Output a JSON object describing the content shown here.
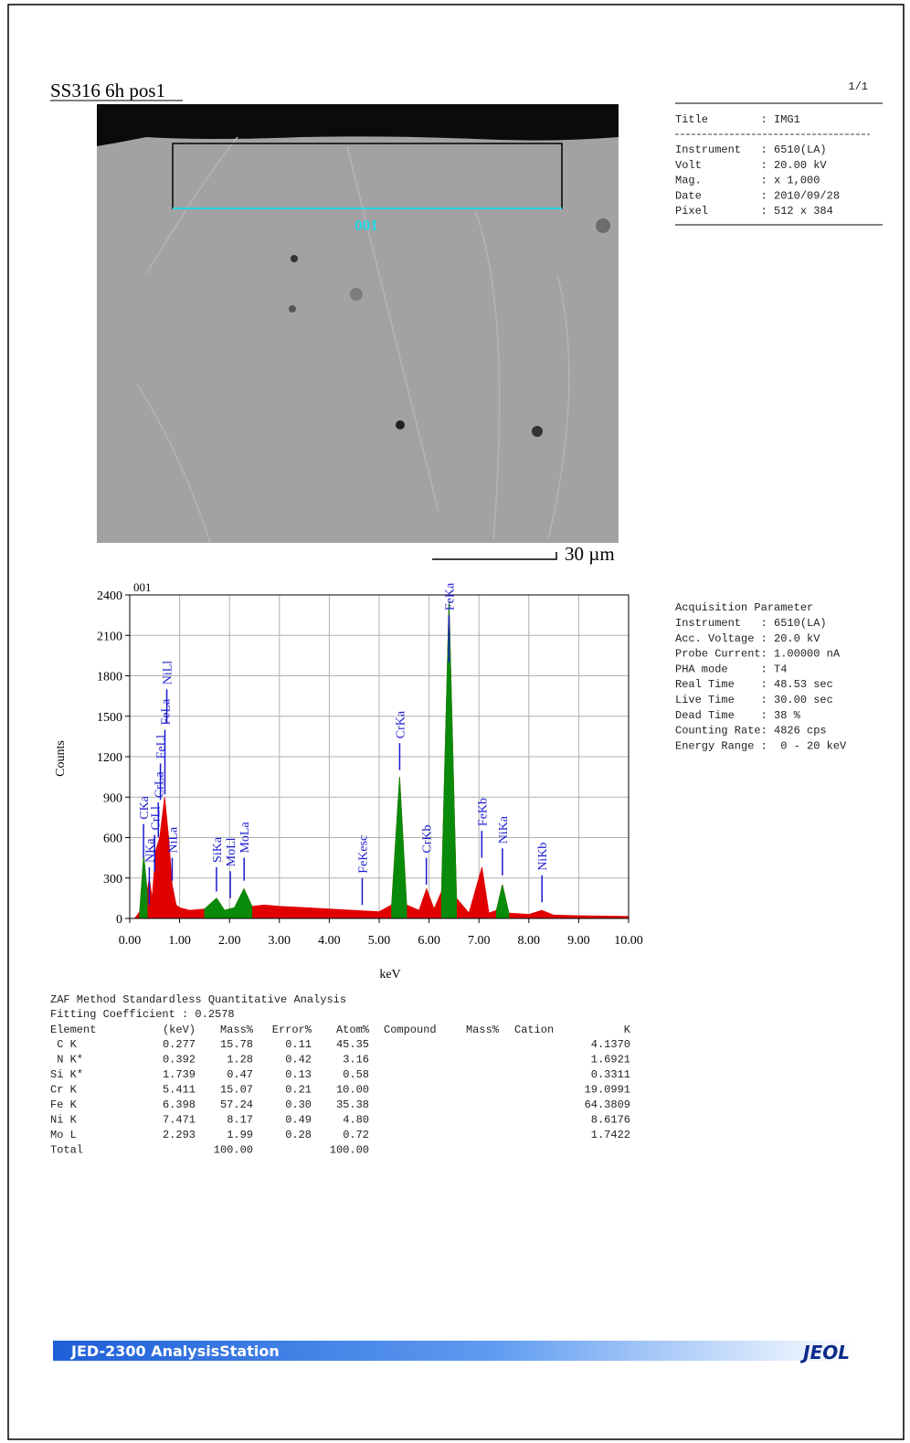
{
  "header": {
    "title": "SS316 6h pos1",
    "page": "1/1"
  },
  "image_info": {
    "title_line": "Title        : IMG1",
    "lines": [
      "Instrument   : 6510(LA)",
      "Volt         : 20.00 kV",
      "Mag.         : x 1,000",
      "Date         : 2010/09/28",
      "Pixel        : 512 x 384"
    ]
  },
  "sem_image": {
    "region_label": "001",
    "scale_bar": "30 µm"
  },
  "chart_data": {
    "type": "area",
    "annotation": "001",
    "xlabel": "keV",
    "ylabel": "Counts",
    "xlim": [
      0,
      10
    ],
    "ylim": [
      0,
      2400
    ],
    "grid": true,
    "xticks": [
      {
        "value": 0,
        "label": "0.00"
      },
      {
        "value": 1,
        "label": "1.00"
      },
      {
        "value": 2,
        "label": "2.00"
      },
      {
        "value": 3,
        "label": "3.00"
      },
      {
        "value": 4,
        "label": "4.00"
      },
      {
        "value": 5,
        "label": "5.00"
      },
      {
        "value": 6,
        "label": "6.00"
      },
      {
        "value": 7,
        "label": "7.00"
      },
      {
        "value": 8,
        "label": "8.00"
      },
      {
        "value": 9,
        "label": "9.00"
      },
      {
        "value": 10,
        "label": "10.00"
      }
    ],
    "yticks": [
      0,
      300,
      600,
      900,
      1200,
      1500,
      1800,
      2100,
      2400
    ],
    "x": [
      0,
      0.1,
      0.2,
      0.28,
      0.35,
      0.39,
      0.45,
      0.52,
      0.6,
      0.7,
      0.78,
      0.85,
      0.93,
      1.0,
      1.2,
      1.5,
      1.74,
      1.9,
      2.1,
      2.29,
      2.45,
      2.7,
      3.0,
      3.5,
      4.0,
      4.5,
      5.0,
      5.25,
      5.41,
      5.55,
      5.8,
      5.95,
      6.1,
      6.25,
      6.4,
      6.55,
      6.8,
      7.06,
      7.2,
      7.35,
      7.47,
      7.6,
      8.0,
      8.26,
      8.5,
      9.0,
      10.0
    ],
    "series": [
      {
        "color": "#e00000",
        "values": [
          0,
          0,
          50,
          470,
          200,
          300,
          150,
          500,
          600,
          900,
          600,
          250,
          100,
          80,
          60,
          70,
          150,
          60,
          80,
          220,
          90,
          100,
          90,
          80,
          70,
          60,
          50,
          100,
          1050,
          100,
          60,
          220,
          70,
          200,
          2350,
          150,
          40,
          380,
          40,
          60,
          250,
          40,
          30,
          60,
          25,
          20,
          15
        ]
      },
      {
        "color": "#0a8a0a",
        "values": [
          null,
          null,
          50,
          470,
          200,
          null,
          null,
          null,
          null,
          null,
          null,
          null,
          null,
          null,
          null,
          70,
          150,
          60,
          80,
          220,
          90,
          null,
          null,
          null,
          null,
          null,
          null,
          100,
          1050,
          100,
          null,
          null,
          null,
          200,
          2350,
          150,
          null,
          null,
          null,
          60,
          250,
          40,
          null,
          null,
          null,
          null,
          null
        ]
      }
    ],
    "peaks": [
      {
        "label": "CKa",
        "energy": 0.277,
        "marker": [
          450,
          700
        ]
      },
      {
        "label": "NKa",
        "energy": 0.392,
        "marker": [
          100,
          380
        ]
      },
      {
        "label": "CrLl",
        "energy": 0.5,
        "marker": [
          350,
          620
        ]
      },
      {
        "label": "CrLa",
        "energy": 0.573,
        "marker": [
          600,
          860
        ]
      },
      {
        "label": "FeLl",
        "energy": 0.615,
        "marker": [
          880,
          1150
        ]
      },
      {
        "label": "FeLa",
        "energy": 0.705,
        "marker": [
          920,
          1400
        ]
      },
      {
        "label": "NiLl",
        "energy": 0.743,
        "marker": [
          1450,
          1700
        ]
      },
      {
        "label": "NiLa",
        "energy": 0.851,
        "marker": [
          280,
          450
        ]
      },
      {
        "label": "SiKa",
        "energy": 1.739,
        "marker": [
          200,
          380
        ]
      },
      {
        "label": "MoLl",
        "energy": 2.015,
        "marker": [
          150,
          350
        ]
      },
      {
        "label": "MoLa",
        "energy": 2.293,
        "marker": [
          280,
          450
        ]
      },
      {
        "label": "FeKesc",
        "energy": 4.66,
        "marker": [
          100,
          300
        ]
      },
      {
        "label": "CrKa",
        "energy": 5.411,
        "marker": [
          1100,
          1300
        ]
      },
      {
        "label": "CrKb",
        "energy": 5.946,
        "marker": [
          250,
          450
        ]
      },
      {
        "label": "FeKa",
        "energy": 6.398,
        "marker": [
          1900,
          2250
        ]
      },
      {
        "label": "FeKb",
        "energy": 7.057,
        "marker": [
          450,
          650
        ]
      },
      {
        "label": "NiKa",
        "energy": 7.471,
        "marker": [
          320,
          520
        ]
      },
      {
        "label": "NiKb",
        "energy": 8.264,
        "marker": [
          120,
          320
        ]
      }
    ]
  },
  "acquisition": {
    "title": "Acquisition Parameter",
    "lines": [
      "Instrument   : 6510(LA)",
      "Acc. Voltage : 20.0 kV",
      "Probe Current: 1.00000 nA",
      "PHA mode     : T4",
      "Real Time    : 48.53 sec",
      "Live Time    : 30.00 sec",
      "Dead Time    : 38 %",
      "Counting Rate: 4826 cps",
      "Energy Range :  0 - 20 keV"
    ]
  },
  "quant": {
    "title": "ZAF Method Standardless Quantitative Analysis",
    "fitting": "Fitting Coefficient : 0.2578",
    "columns": [
      "Element",
      "(keV)",
      "Mass%",
      "Error%",
      "Atom%",
      "Compound",
      "Mass%",
      "Cation",
      "K"
    ],
    "rows": [
      [
        " C K",
        "0.277",
        "15.78",
        "0.11",
        "45.35",
        "4.1370"
      ],
      [
        " N K*",
        "0.392",
        "1.28",
        "0.42",
        "3.16",
        "1.6921"
      ],
      [
        "Si K*",
        "1.739",
        "0.47",
        "0.13",
        "0.58",
        "0.3311"
      ],
      [
        "Cr K",
        "5.411",
        "15.07",
        "0.21",
        "10.00",
        "19.0991"
      ],
      [
        "Fe K",
        "6.398",
        "57.24",
        "0.30",
        "35.38",
        "64.3809"
      ],
      [
        "Ni K",
        "7.471",
        "8.17",
        "0.49",
        "4.80",
        "8.6176"
      ],
      [
        "Mo L",
        "2.293",
        "1.99",
        "0.28",
        "0.72",
        "1.7422"
      ]
    ],
    "total": {
      "label": "Total",
      "mass": "100.00",
      "atom": "100.00"
    }
  },
  "footer": {
    "product": "JED-2300 AnalysisStation",
    "brand": "JEOL"
  }
}
